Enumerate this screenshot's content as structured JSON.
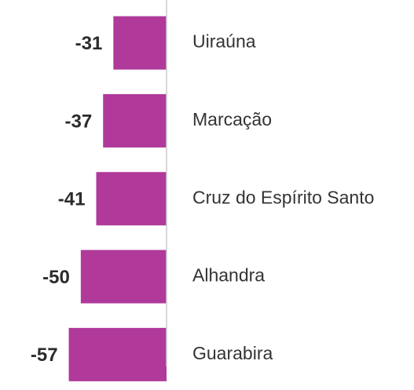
{
  "chart_data": {
    "type": "bar",
    "orientation": "horizontal",
    "categories": [
      "Uiraúna",
      "Marcação",
      "Cruz do Espírito Santo",
      "Alhandra",
      "Guarabira"
    ],
    "values": [
      -31,
      -37,
      -41,
      -50,
      -57
    ],
    "color": "#b0399a",
    "xlim": [
      -60,
      0
    ]
  }
}
